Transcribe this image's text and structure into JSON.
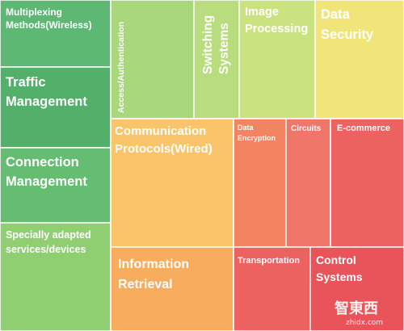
{
  "chart_data": {
    "type": "treemap",
    "title": "",
    "tiles": [
      {
        "label": "Multiplexing Methods(Wireless)",
        "color": "#5cb872"
      },
      {
        "label": "Traffic Management",
        "color": "#52b06a"
      },
      {
        "label": "Connection Management",
        "color": "#64bd71"
      },
      {
        "label": "Specially adapted services/devices",
        "color": "#8fcf72"
      },
      {
        "label": "Access/Authentication",
        "color": "#a9d77c"
      },
      {
        "label": "Switching Systems",
        "color": "#b9dc7f"
      },
      {
        "label": "Image Processing",
        "color": "#cbe280"
      },
      {
        "label": "Data Security",
        "color": "#f1e57a"
      },
      {
        "label": "Communication Protocols(Wired)",
        "color": "#f9c46a"
      },
      {
        "label": "Information Retrieval",
        "color": "#f8ad5e"
      },
      {
        "label": "Data Encryption",
        "color": "#f28462"
      },
      {
        "label": "Circuits",
        "color": "#f0766a"
      },
      {
        "label": "E-commerce",
        "color": "#eb6261"
      },
      {
        "label": "Transportation",
        "color": "#ec6260"
      },
      {
        "label": "Control Systems",
        "color": "#e8545a"
      }
    ]
  },
  "watermark": {
    "logo_text": "智東西",
    "url": "zhidx.com"
  }
}
